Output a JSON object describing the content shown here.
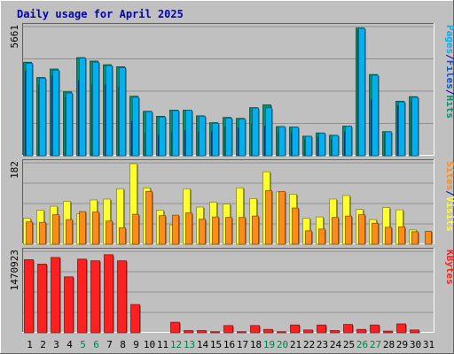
{
  "title": "Daily usage for April 2025",
  "colors": {
    "hits": "#008f6f",
    "files": "#1050c8",
    "pages": "#00b0f0",
    "visits": "#ffff30",
    "sites": "#ff8c1a",
    "kbytes": "#ff2020",
    "weekday_tick": "#000000",
    "weekend_tick": "#007f4f",
    "sep_blue": "#0000b0",
    "panel_bg": "#c0c0c0"
  },
  "chart_data": {
    "type": "bar",
    "categories": [
      "1",
      "2",
      "3",
      "4",
      "5",
      "6",
      "7",
      "8",
      "9",
      "10",
      "11",
      "12",
      "13",
      "14",
      "15",
      "16",
      "17",
      "18",
      "19",
      "20",
      "21",
      "22",
      "23",
      "24",
      "25",
      "26",
      "27",
      "28",
      "29",
      "30",
      "31"
    ],
    "weekend_days": [
      5,
      6,
      12,
      13,
      19,
      20,
      26,
      27
    ],
    "panels": [
      {
        "id": "requests",
        "ymax": 5661,
        "ymax_label": "5661",
        "legend": [
          {
            "text": "Pages",
            "color": "#00b0f0"
          },
          {
            "text": "/",
            "color": "#0000b0"
          },
          {
            "text": "Files",
            "color": "#1050c8"
          },
          {
            "text": "/",
            "color": "#0000b0"
          },
          {
            "text": "Hits",
            "color": "#008f6f"
          }
        ],
        "series": [
          {
            "key": "hits",
            "values": [
              4100,
              3430,
              3800,
              2800,
              4300,
              4150,
              3990,
              3900,
              2610,
              1950,
              1730,
              2000,
              2000,
              1750,
              1450,
              1680,
              1640,
              2110,
              2230,
              1280,
              1260,
              860,
              1000,
              900,
              1300,
              5600,
              3560,
              1060,
              2390,
              2590,
              0
            ]
          },
          {
            "key": "files",
            "values": [
              3700,
              3100,
              3500,
              2550,
              3300,
              3100,
              3100,
              3000,
              1500,
              1000,
              900,
              1050,
              1100,
              1050,
              1050,
              1250,
              1200,
              1400,
              1300,
              1000,
              1000,
              700,
              820,
              700,
              1050,
              5500,
              2450,
              950,
              2200,
              2350,
              0
            ]
          },
          {
            "key": "pages",
            "values": [
              4050,
              3400,
              3750,
              2750,
              4280,
              4100,
              3950,
              3860,
              2560,
              1930,
              1700,
              1980,
              1990,
              1730,
              1420,
              1650,
              1610,
              2090,
              2100,
              1270,
              1250,
              850,
              990,
              890,
              1290,
              5580,
              3530,
              1050,
              2360,
              2560,
              0
            ]
          }
        ]
      },
      {
        "id": "visitors",
        "ymax": 182,
        "ymax_label": "182",
        "legend": [
          {
            "text": "Sites",
            "color": "#ff8c1a"
          },
          {
            "text": "/",
            "color": "#0000b0"
          },
          {
            "text": "Visits",
            "color": "#ffff30"
          }
        ],
        "series": [
          {
            "key": "visits",
            "values": [
              58,
              76,
              85,
              96,
              68,
              99,
              101,
              124,
              180,
              126,
              76,
              43,
              124,
              83,
              94,
              90,
              126,
              102,
              162,
              117,
              112,
              58,
              61,
              101,
              109,
              78,
              55,
              82,
              77,
              32,
              0
            ]
          },
          {
            "key": "sites",
            "values": [
              50,
              49,
              66,
              55,
              73,
              72,
              52,
              37,
              67,
              118,
              64,
              65,
              70,
              56,
              61,
              60,
              60,
              63,
              120,
              118,
              81,
              30,
              34,
              60,
              63,
              66,
              47,
              38,
              39,
              28,
              29
            ]
          }
        ]
      },
      {
        "id": "kbytes",
        "ymax": 1470923,
        "ymax_label": "1470923",
        "legend": [
          {
            "text": "KBytes",
            "color": "#ff2020"
          }
        ],
        "series": [
          {
            "key": "kbytes",
            "values": [
              1320000,
              1240000,
              1360000,
              1010000,
              1330000,
              1300000,
              1410000,
              1300000,
              510000,
              0,
              0,
              190000,
              40000,
              40000,
              20000,
              130000,
              20000,
              130000,
              60000,
              20000,
              140000,
              50000,
              140000,
              40000,
              150000,
              60000,
              140000,
              30000,
              160000,
              50000,
              0
            ]
          }
        ]
      }
    ]
  }
}
